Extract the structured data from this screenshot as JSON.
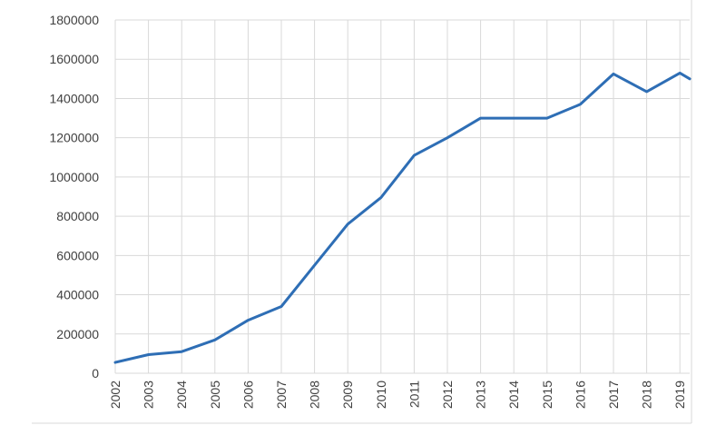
{
  "chart_data": {
    "type": "line",
    "title": "",
    "xlabel": "",
    "ylabel": "",
    "categories": [
      "2002",
      "2003",
      "2004",
      "2005",
      "2006",
      "2007",
      "2008",
      "2009",
      "2010",
      "2011",
      "2012",
      "2013",
      "2014",
      "2015",
      "2016",
      "2017",
      "2018",
      "2019"
    ],
    "yticks": [
      "0",
      "200000",
      "400000",
      "600000",
      "800000",
      "1000000",
      "1200000",
      "1400000",
      "1600000",
      "1800000"
    ],
    "ylim": [
      0,
      1800000
    ],
    "grid": "vertical and horizontal",
    "legend": "none",
    "series": [
      {
        "color": "#2e6eb5",
        "values": [
          55000,
          95000,
          110000,
          170000,
          270000,
          340000,
          550000,
          760000,
          895000,
          1110000,
          1200000,
          1300000,
          1300000,
          1300000,
          1370000,
          1525000,
          1435000,
          1530000
        ],
        "end_value": 1500000
      }
    ]
  }
}
